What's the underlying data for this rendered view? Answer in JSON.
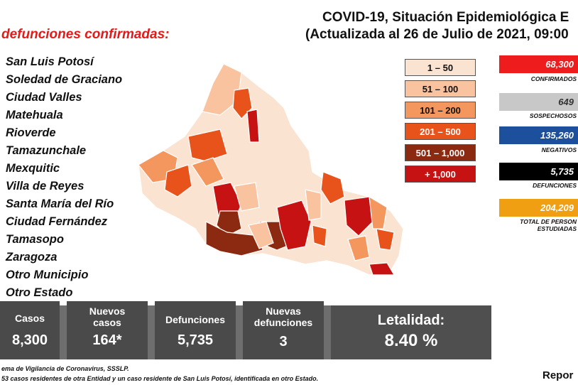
{
  "header": {
    "title_line1": "COVID-19, Situación Epidemiológica E",
    "title_line2": "(Actualizada al 26 de Julio de 2021, 09:00"
  },
  "subheading": "defunciones confirmadas:",
  "municipalities": [
    "San Luis Potosí",
    "Soledad de Graciano",
    "Ciudad Valles",
    "Matehuala",
    "Rioverde",
    "Tamazunchale",
    "Mexquitic",
    "Villa de Reyes",
    "Santa María del Río",
    "Ciudad Fernández",
    "Tamasopo",
    "Zaragoza",
    "Otro Municipio",
    "Otro Estado"
  ],
  "legend": [
    {
      "label": "1 – 50",
      "color": "#fbe3d1",
      "text": "#111"
    },
    {
      "label": "51 – 100",
      "color": "#f9c39f",
      "text": "#111"
    },
    {
      "label": "101 – 200",
      "color": "#f4975f",
      "text": "#111"
    },
    {
      "label": "201 – 500",
      "color": "#e8531c",
      "text": "#ffffff"
    },
    {
      "label": "501 – 1,000",
      "color": "#8b2a10",
      "text": "#ffffff"
    },
    {
      "label": "+ 1,000",
      "color": "#c61212",
      "text": "#ffffff"
    }
  ],
  "stats": [
    {
      "value": "68,300",
      "label": "CONFIRMADOS",
      "color": "#ee1c1c"
    },
    {
      "value": "649",
      "label": "SOSPECHOSOS",
      "color": "#c8c8c8"
    },
    {
      "value": "135,260",
      "label": "NEGATIVOS",
      "color": "#1c4f9c"
    },
    {
      "value": "5,735",
      "label": "DEFUNCIONES",
      "color": "#000000"
    },
    {
      "value": "204,209",
      "label": "TOTAL DE PERSON ESTUDIADAS",
      "color": "#ef9f11"
    }
  ],
  "summary": {
    "casos_label": "Casos",
    "casos_value": "8,300",
    "nuevos_label": "Nuevos casos",
    "nuevos_value": "164*",
    "defunciones_label": "Defunciones",
    "defunciones_value": "5,735",
    "nuevas_def_label": "Nuevas defunciones",
    "nuevas_def_value": "3",
    "letalidad_label": "Letalidad:",
    "letalidad_value": "8.40 %"
  },
  "footer": {
    "line1": "ema de Vigilancia de Coronavirus, SSSLP.",
    "line2": "53 casos residentes de otra Entidad y un caso residente de San Luis Potosí, identificada en otro Estado.",
    "report": "Repor"
  }
}
